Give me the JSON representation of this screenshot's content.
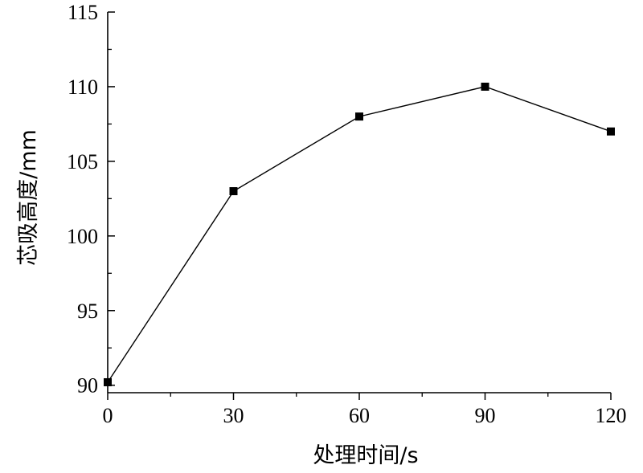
{
  "chart_data": {
    "type": "line",
    "x": [
      0,
      30,
      60,
      90,
      120
    ],
    "series": [
      {
        "values": [
          90.2,
          103,
          108,
          110,
          107
        ]
      }
    ],
    "xlabel": "处理时间/s",
    "ylabel": "芯吸高度/mm",
    "xlim": [
      0,
      120
    ],
    "ylim": [
      89.5,
      115
    ],
    "x_ticks": [
      0,
      30,
      60,
      90,
      120
    ],
    "x_tick_labels": [
      "0",
      "30",
      "60",
      "90",
      "120"
    ],
    "y_ticks": [
      90,
      95,
      100,
      105,
      110,
      115
    ],
    "y_tick_labels": [
      "90",
      "95",
      "100",
      "105",
      "110",
      "115"
    ],
    "grid": false,
    "marker": "square",
    "color": "#000000"
  }
}
